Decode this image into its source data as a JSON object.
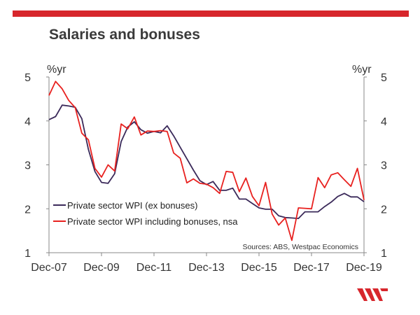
{
  "page": {
    "title": "Salaries and bonuses"
  },
  "colors": {
    "brand": "#d7262c",
    "series_ex": "#3b2a5a",
    "series_incl": "#e8211f"
  },
  "chart_data": {
    "type": "line",
    "title": "Salaries and bonuses",
    "ylabel_left": "%yr",
    "ylabel_right": "%yr",
    "ylim": [
      1,
      5
    ],
    "yticks": [
      1,
      2,
      3,
      4,
      5
    ],
    "xlim": [
      2007.92,
      2019.92
    ],
    "xticks": [
      {
        "label": "Dec-07",
        "value": 2007.92
      },
      {
        "label": "Dec-09",
        "value": 2009.92
      },
      {
        "label": "Dec-11",
        "value": 2011.92
      },
      {
        "label": "Dec-13",
        "value": 2013.92
      },
      {
        "label": "Dec-15",
        "value": 2015.92
      },
      {
        "label": "Dec-17",
        "value": 2017.92
      },
      {
        "label": "Dec-19",
        "value": 2019.92
      }
    ],
    "source": "Sources: ABS, Westpac Economics",
    "legend_position": "bottom-left",
    "series": [
      {
        "name": "Private sector WPI (ex bonuses)",
        "color": "#3b2a5a",
        "x": [
          2007.92,
          2008.17,
          2008.42,
          2008.67,
          2008.92,
          2009.17,
          2009.42,
          2009.67,
          2009.92,
          2010.17,
          2010.42,
          2010.67,
          2010.92,
          2011.17,
          2011.42,
          2011.67,
          2011.92,
          2012.17,
          2012.42,
          2012.67,
          2012.92,
          2013.17,
          2013.42,
          2013.67,
          2013.92,
          2014.17,
          2014.42,
          2014.67,
          2014.92,
          2015.17,
          2015.42,
          2015.67,
          2015.92,
          2016.17,
          2016.42,
          2016.67,
          2016.92,
          2017.17,
          2017.42,
          2017.67,
          2017.92,
          2018.17,
          2018.42,
          2018.67,
          2018.92,
          2019.17,
          2019.42,
          2019.67,
          2019.92
        ],
        "values": [
          4.03,
          4.1,
          4.36,
          4.34,
          4.31,
          4.05,
          3.35,
          2.85,
          2.6,
          2.58,
          2.8,
          3.53,
          3.86,
          3.98,
          3.8,
          3.72,
          3.76,
          3.73,
          3.89,
          3.66,
          3.4,
          3.14,
          2.88,
          2.64,
          2.55,
          2.62,
          2.42,
          2.42,
          2.47,
          2.22,
          2.22,
          2.12,
          2.02,
          1.99,
          1.99,
          1.84,
          1.8,
          1.79,
          1.78,
          1.93,
          1.93,
          1.93,
          2.05,
          2.15,
          2.28,
          2.35,
          2.27,
          2.27,
          2.16
        ]
      },
      {
        "name": "Private sector WPI including bonuses, nsa",
        "color": "#e8211f",
        "x": [
          2007.92,
          2008.17,
          2008.42,
          2008.67,
          2008.92,
          2009.17,
          2009.42,
          2009.67,
          2009.92,
          2010.17,
          2010.42,
          2010.67,
          2010.92,
          2011.17,
          2011.42,
          2011.67,
          2011.92,
          2012.17,
          2012.42,
          2012.67,
          2012.92,
          2013.17,
          2013.42,
          2013.67,
          2013.92,
          2014.17,
          2014.42,
          2014.67,
          2014.92,
          2015.17,
          2015.42,
          2015.67,
          2015.92,
          2016.17,
          2016.42,
          2016.67,
          2016.92,
          2017.17,
          2017.42,
          2017.67,
          2017.92,
          2018.17,
          2018.42,
          2018.67,
          2018.92,
          2019.17,
          2019.42,
          2019.67,
          2019.92
        ],
        "values": [
          4.58,
          4.9,
          4.73,
          4.47,
          4.3,
          3.72,
          3.57,
          2.92,
          2.72,
          3.0,
          2.86,
          3.93,
          3.82,
          4.09,
          3.68,
          3.77,
          3.76,
          3.78,
          3.76,
          3.27,
          3.15,
          2.59,
          2.68,
          2.58,
          2.56,
          2.48,
          2.35,
          2.85,
          2.83,
          2.39,
          2.7,
          2.28,
          2.07,
          2.6,
          1.88,
          1.63,
          1.79,
          1.28,
          2.02,
          2.01,
          2.0,
          2.71,
          2.48,
          2.77,
          2.82,
          2.66,
          2.51,
          2.92,
          2.2
        ]
      }
    ]
  }
}
